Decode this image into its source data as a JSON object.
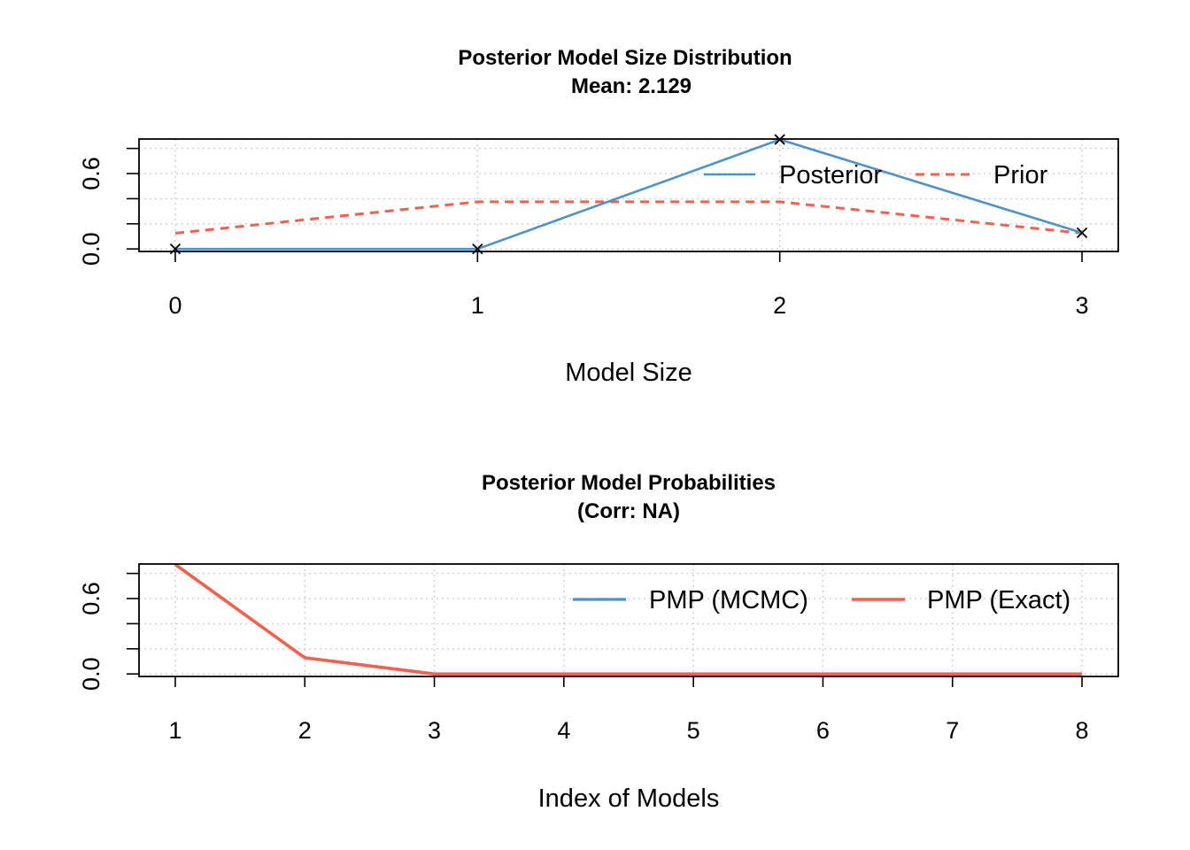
{
  "colors": {
    "posterior": "#4f91c9",
    "prior": "#f0624d",
    "pmp_mcmc": "#4f91c9",
    "pmp_exact": "#f0624d",
    "grid": "#cfcfcf"
  },
  "chart_data": [
    {
      "type": "line",
      "title": "Posterior Model Size Distribution",
      "subtitle": "Mean: 2.129",
      "xlabel": "Model Size",
      "ylabel": "",
      "x": [
        0,
        1,
        2,
        3
      ],
      "xlim": [
        -0.12,
        3.12
      ],
      "ylim": [
        -0.02,
        0.875
      ],
      "x_ticks": [
        "0",
        "1",
        "2",
        "3"
      ],
      "y_ticks": [
        0.0,
        0.2,
        0.4,
        0.6,
        0.8
      ],
      "y_tick_labels": [
        "0.0",
        "0.6"
      ],
      "grid": true,
      "legend_position": "top-right",
      "series": [
        {
          "name": "Posterior",
          "values": [
            0.0,
            0.0,
            0.871,
            0.129
          ],
          "style": "solid",
          "markers": "x"
        },
        {
          "name": "Prior",
          "values": [
            0.125,
            0.375,
            0.375,
            0.125
          ],
          "style": "dashed"
        }
      ]
    },
    {
      "type": "line",
      "title": "Posterior Model Probabilities",
      "subtitle": "(Corr: NA)",
      "xlabel": "Index of Models",
      "ylabel": "",
      "x": [
        1,
        2,
        3,
        4,
        5,
        6,
        7,
        8
      ],
      "xlim": [
        0.72,
        8.28
      ],
      "ylim": [
        -0.02,
        0.875
      ],
      "x_ticks": [
        "1",
        "2",
        "3",
        "4",
        "5",
        "6",
        "7",
        "8"
      ],
      "y_ticks": [
        0.0,
        0.2,
        0.4,
        0.6,
        0.8
      ],
      "y_tick_labels": [
        "0.0",
        "0.6"
      ],
      "grid": true,
      "legend_position": "top-right",
      "series": [
        {
          "name": "PMP (MCMC)",
          "values": [
            0.871,
            0.129,
            0.0,
            0.0,
            0.0,
            0.0,
            0.0,
            0.0
          ],
          "style": "solid"
        },
        {
          "name": "PMP (Exact)",
          "values": [
            0.871,
            0.129,
            0.0,
            0.0,
            0.0,
            0.0,
            0.0,
            0.0
          ],
          "style": "solid"
        }
      ]
    }
  ]
}
